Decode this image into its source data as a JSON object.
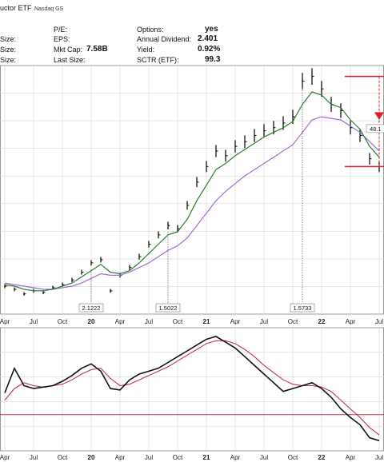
{
  "header": {
    "title": "uctor ETF",
    "exchange": "Nasdaq GS",
    "left_labels": [
      "Size:",
      "Size:",
      "Size:"
    ],
    "stats": [
      {
        "label": "P/E:",
        "value": ""
      },
      {
        "label": "EPS:",
        "value": ""
      },
      {
        "label": "Mkt Cap:",
        "value": "7.58B"
      },
      {
        "label": "Last Size:",
        "value": ""
      },
      {
        "label": "Options:",
        "value": "yes"
      },
      {
        "label": "Annual Dividend:",
        "value": "2.401"
      },
      {
        "label": "Yield:",
        "value": "0.92%"
      },
      {
        "label": "SCTR (ETF):",
        "value": "99.3"
      }
    ]
  },
  "colors": {
    "price": "#000000",
    "ma_short": "#2e7d32",
    "ma_long": "#a46bd6",
    "indicator_fast": "#111111",
    "indicator_slow": "#c0334d",
    "bracket": "#e02020",
    "grid": "#d6d6d6",
    "panel_bg": "#ffffff"
  },
  "chart_data": [
    {
      "type": "line",
      "title": "",
      "x_tick_labels": [
        "Apr",
        "Jul",
        "Oct",
        "20",
        "Apr",
        "Jul",
        "Oct",
        "21",
        "Apr",
        "Jul",
        "Oct",
        "22",
        "Apr",
        "Jul"
      ],
      "x": [
        "2019-04",
        "2019-05",
        "2019-06",
        "2019-07",
        "2019-08",
        "2019-09",
        "2019-10",
        "2019-11",
        "2019-12",
        "2020-01",
        "2020-02",
        "2020-03",
        "2020-04",
        "2020-05",
        "2020-06",
        "2020-07",
        "2020-08",
        "2020-09",
        "2020-10",
        "2020-11",
        "2020-12",
        "2021-01",
        "2021-02",
        "2021-03",
        "2021-04",
        "2021-05",
        "2021-06",
        "2021-07",
        "2021-08",
        "2021-09",
        "2021-10",
        "2021-11",
        "2021-12",
        "2022-01",
        "2022-02",
        "2022-03",
        "2022-04",
        "2022-05",
        "2022-06",
        "2022-07"
      ],
      "series": [
        {
          "values": [
            43,
            41,
            38,
            40,
            39,
            42,
            44,
            47,
            52,
            58,
            60,
            40,
            50,
            55,
            62,
            70,
            76,
            82,
            80,
            95,
            110,
            120,
            130,
            127,
            133,
            136,
            140,
            143,
            145,
            148,
            152,
            175,
            178,
            170,
            160,
            156,
            145,
            140,
            125,
            120
          ]
        },
        {
          "values": [
            44,
            43,
            41,
            40,
            40,
            41,
            43,
            45,
            49,
            53,
            57,
            52,
            51,
            53,
            58,
            64,
            70,
            76,
            78,
            86,
            98,
            108,
            118,
            122,
            127,
            131,
            135,
            139,
            142,
            145,
            149,
            160,
            168,
            166,
            160,
            158,
            150,
            144,
            133,
            126
          ]
        },
        {
          "values": [
            45,
            44,
            43,
            42,
            41,
            41,
            42,
            43,
            45,
            48,
            51,
            50,
            50,
            52,
            55,
            58,
            62,
            66,
            69,
            74,
            82,
            90,
            98,
            104,
            109,
            114,
            118,
            122,
            126,
            130,
            134,
            142,
            150,
            152,
            151,
            150,
            146,
            142,
            136,
            130
          ]
        }
      ],
      "annotations": [
        "2.1222",
        "1.5022",
        "1.5733",
        "48.1"
      ]
    },
    {
      "type": "line",
      "x": [
        "2019-04",
        "2019-05",
        "2019-06",
        "2019-07",
        "2019-08",
        "2019-09",
        "2019-10",
        "2019-11",
        "2019-12",
        "2020-01",
        "2020-02",
        "2020-03",
        "2020-04",
        "2020-05",
        "2020-06",
        "2020-07",
        "2020-08",
        "2020-09",
        "2020-10",
        "2020-11",
        "2020-12",
        "2021-01",
        "2021-02",
        "2021-03",
        "2021-04",
        "2021-05",
        "2021-06",
        "2021-07",
        "2021-08",
        "2021-09",
        "2021-10",
        "2021-11",
        "2021-12",
        "2022-01",
        "2022-02",
        "2022-03",
        "2022-04",
        "2022-05",
        "2022-06",
        "2022-07"
      ],
      "x_tick_labels": [
        "Apr",
        "Jul",
        "Oct",
        "20",
        "Apr",
        "Jul",
        "Oct",
        "21",
        "Apr",
        "Jul",
        "Oct",
        "22",
        "Apr",
        "Jul"
      ],
      "series": [
        {
          "values": [
            55,
            72,
            60,
            58,
            59,
            60,
            63,
            67,
            72,
            75,
            70,
            58,
            57,
            64,
            68,
            70,
            72,
            76,
            80,
            84,
            88,
            92,
            94,
            90,
            86,
            80,
            74,
            68,
            62,
            56,
            58,
            60,
            62,
            58,
            52,
            44,
            38,
            33,
            24,
            22
          ]
        },
        {
          "values": [
            50,
            58,
            62,
            60,
            59,
            60,
            61,
            64,
            68,
            71,
            72,
            65,
            60,
            61,
            64,
            67,
            70,
            73,
            77,
            81,
            85,
            89,
            91,
            91,
            89,
            85,
            80,
            74,
            69,
            64,
            61,
            60,
            60,
            59,
            56,
            50,
            44,
            38,
            31,
            26
          ]
        }
      ],
      "reference_level": 40
    }
  ]
}
